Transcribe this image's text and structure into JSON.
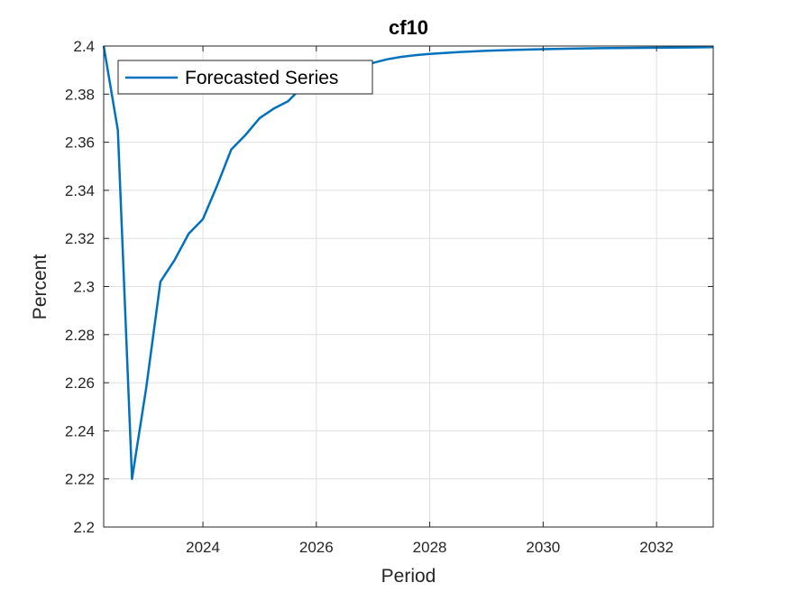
{
  "chart_data": {
    "type": "line",
    "title": "cf10",
    "xlabel": "Period",
    "ylabel": "Percent",
    "xlim": [
      2022.25,
      2033.0
    ],
    "ylim": [
      2.2,
      2.4
    ],
    "x_ticks": [
      2024,
      2026,
      2028,
      2030,
      2032
    ],
    "x_tick_labels": [
      "2024",
      "2026",
      "2028",
      "2030",
      "2032"
    ],
    "y_ticks": [
      2.2,
      2.22,
      2.24,
      2.26,
      2.28,
      2.3,
      2.32,
      2.34,
      2.36,
      2.38,
      2.4
    ],
    "y_tick_labels": [
      "2.2",
      "2.22",
      "2.24",
      "2.26",
      "2.28",
      "2.3",
      "2.32",
      "2.34",
      "2.36",
      "2.38",
      "2.4"
    ],
    "grid": true,
    "legend_position": "top-left",
    "series": [
      {
        "name": "Forecasted Series",
        "color": "#0072BD",
        "x": [
          2022.25,
          2022.5,
          2022.75,
          2023.0,
          2023.25,
          2023.5,
          2023.75,
          2024.0,
          2024.25,
          2024.5,
          2024.75,
          2025.0,
          2025.25,
          2025.5,
          2025.75,
          2026.0,
          2026.25,
          2026.5,
          2026.75,
          2027.0,
          2027.25,
          2027.5,
          2027.75,
          2028.0,
          2028.5,
          2029.0,
          2029.5,
          2030.0,
          2030.5,
          2031.0,
          2031.5,
          2032.0,
          2032.5,
          2033.0
        ],
        "y": [
          2.4,
          2.365,
          2.22,
          2.258,
          2.302,
          2.311,
          2.322,
          2.328,
          2.342,
          2.357,
          2.363,
          2.37,
          2.374,
          2.377,
          2.383,
          2.386,
          2.388,
          2.39,
          2.392,
          2.393,
          2.3945,
          2.3955,
          2.3962,
          2.3967,
          2.3975,
          2.398,
          2.3984,
          2.3987,
          2.3989,
          2.3991,
          2.3992,
          2.3993,
          2.3994,
          2.3995
        ]
      }
    ]
  }
}
